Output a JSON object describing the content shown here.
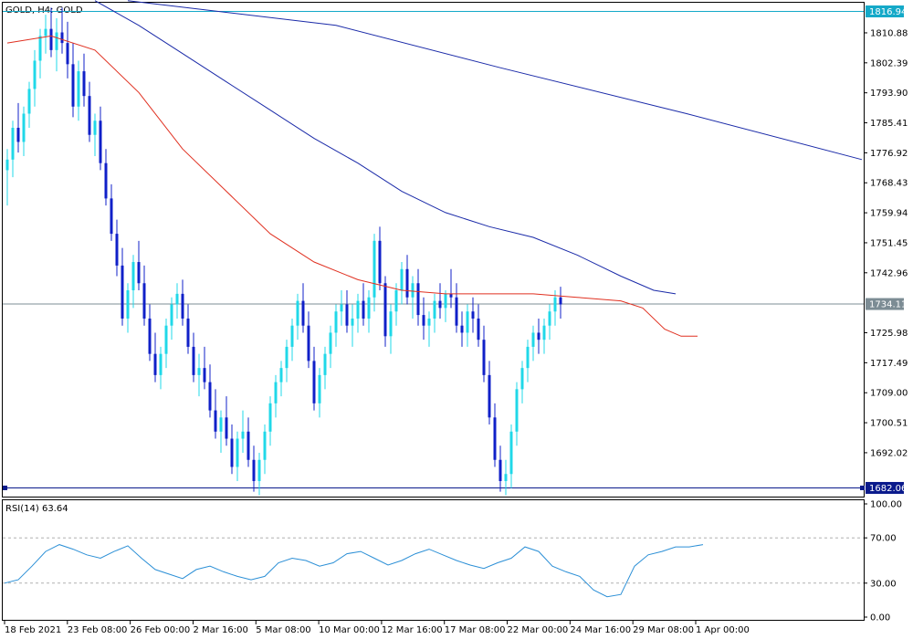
{
  "chart_data": [
    {
      "type": "candlestick",
      "title": "GOLD, H4:  GOLD",
      "y_ticks": [
        "1810.88",
        "1802.39",
        "1793.90",
        "1785.41",
        "1776.92",
        "1768.43",
        "1759.94",
        "1751.45",
        "1742.96",
        "1734.11",
        "1725.98",
        "1717.49",
        "1709.00",
        "1700.51",
        "1692.02",
        "1682.06"
      ],
      "x_ticks": [
        "18 Feb 2021",
        "23 Feb 08:00",
        "26 Feb 00:00",
        "2 Mar 16:00",
        "5 Mar 08:00",
        "10 Mar 00:00",
        "12 Mar 16:00",
        "17 Mar 08:00",
        "22 Mar 00:00",
        "24 Mar 16:00",
        "29 Mar 08:00",
        "1 Apr 00:00"
      ],
      "ylim": [
        1679.6,
        1819.4
      ],
      "levels": {
        "top_line": {
          "label": "1816.94",
          "value": 1816.94,
          "color": "#14a9c8"
        },
        "current_price": {
          "label": "1734.11",
          "value": 1734.11,
          "color": "#7c8c94"
        },
        "bottom_line": {
          "label": "1682.06",
          "value": 1682.06,
          "color": "#0a1a8c"
        }
      },
      "ma_fast_color": "#e03020",
      "ma_slow_color": "#1a2aa8",
      "bull_color": "#20d8e8",
      "bear_color": "#1020c8",
      "ohlc": [
        [
          1772,
          1778,
          1762,
          1775
        ],
        [
          1775,
          1786,
          1770,
          1784
        ],
        [
          1784,
          1791,
          1777,
          1780
        ],
        [
          1780,
          1790,
          1776,
          1788
        ],
        [
          1788,
          1797,
          1784,
          1795
        ],
        [
          1795,
          1806,
          1790,
          1803
        ],
        [
          1803,
          1812,
          1798,
          1810
        ],
        [
          1810,
          1816,
          1805,
          1812
        ],
        [
          1812,
          1818,
          1804,
          1806
        ],
        [
          1806,
          1815,
          1800,
          1811
        ],
        [
          1811,
          1818,
          1805,
          1808
        ],
        [
          1808,
          1814,
          1798,
          1802
        ],
        [
          1802,
          1808,
          1787,
          1790
        ],
        [
          1790,
          1803,
          1786,
          1800
        ],
        [
          1800,
          1805,
          1790,
          1793
        ],
        [
          1793,
          1797,
          1780,
          1782
        ],
        [
          1782,
          1788,
          1776,
          1786
        ],
        [
          1786,
          1790,
          1772,
          1774
        ],
        [
          1774,
          1778,
          1762,
          1764
        ],
        [
          1764,
          1768,
          1752,
          1754
        ],
        [
          1754,
          1758,
          1742,
          1745
        ],
        [
          1745,
          1750,
          1728,
          1730
        ],
        [
          1730,
          1740,
          1726,
          1738
        ],
        [
          1738,
          1748,
          1733,
          1746
        ],
        [
          1746,
          1752,
          1738,
          1740
        ],
        [
          1740,
          1745,
          1728,
          1730
        ],
        [
          1730,
          1734,
          1718,
          1720
        ],
        [
          1720,
          1726,
          1712,
          1714
        ],
        [
          1714,
          1722,
          1710,
          1720
        ],
        [
          1720,
          1730,
          1716,
          1728
        ],
        [
          1728,
          1736,
          1724,
          1734
        ],
        [
          1734,
          1740,
          1730,
          1737
        ],
        [
          1737,
          1741,
          1728,
          1730
        ],
        [
          1730,
          1734,
          1720,
          1722
        ],
        [
          1722,
          1726,
          1712,
          1714
        ],
        [
          1714,
          1720,
          1708,
          1716
        ],
        [
          1716,
          1722,
          1710,
          1712
        ],
        [
          1712,
          1717,
          1702,
          1704
        ],
        [
          1704,
          1710,
          1696,
          1698
        ],
        [
          1698,
          1704,
          1692,
          1702
        ],
        [
          1702,
          1708,
          1694,
          1696
        ],
        [
          1696,
          1700,
          1686,
          1688
        ],
        [
          1688,
          1698,
          1684,
          1696
        ],
        [
          1696,
          1704,
          1692,
          1698
        ],
        [
          1698,
          1702,
          1688,
          1690
        ],
        [
          1690,
          1694,
          1681,
          1684
        ],
        [
          1684,
          1692,
          1680,
          1690
        ],
        [
          1690,
          1700,
          1686,
          1698
        ],
        [
          1698,
          1708,
          1694,
          1706
        ],
        [
          1706,
          1714,
          1702,
          1712
        ],
        [
          1712,
          1718,
          1708,
          1716
        ],
        [
          1716,
          1724,
          1712,
          1722
        ],
        [
          1722,
          1730,
          1718,
          1728
        ],
        [
          1728,
          1737,
          1724,
          1735
        ],
        [
          1735,
          1740,
          1726,
          1728
        ],
        [
          1728,
          1732,
          1716,
          1718
        ],
        [
          1718,
          1722,
          1704,
          1706
        ],
        [
          1706,
          1716,
          1702,
          1714
        ],
        [
          1714,
          1722,
          1710,
          1720
        ],
        [
          1720,
          1728,
          1716,
          1726
        ],
        [
          1726,
          1734,
          1722,
          1732
        ],
        [
          1732,
          1738,
          1728,
          1734
        ],
        [
          1734,
          1738,
          1726,
          1728
        ],
        [
          1728,
          1734,
          1722,
          1730
        ],
        [
          1730,
          1737,
          1726,
          1735
        ],
        [
          1735,
          1740,
          1728,
          1730
        ],
        [
          1730,
          1738,
          1726,
          1736
        ],
        [
          1736,
          1754,
          1732,
          1752
        ],
        [
          1752,
          1756,
          1738,
          1740
        ],
        [
          1740,
          1742,
          1722,
          1725
        ],
        [
          1725,
          1734,
          1720,
          1732
        ],
        [
          1732,
          1740,
          1728,
          1738
        ],
        [
          1738,
          1746,
          1734,
          1744
        ],
        [
          1744,
          1748,
          1734,
          1736
        ],
        [
          1736,
          1742,
          1730,
          1740
        ],
        [
          1740,
          1744,
          1728,
          1731
        ],
        [
          1731,
          1736,
          1724,
          1728
        ],
        [
          1728,
          1732,
          1722,
          1730
        ],
        [
          1730,
          1737,
          1726,
          1735
        ],
        [
          1735,
          1740,
          1730,
          1733
        ],
        [
          1733,
          1738,
          1729,
          1737
        ],
        [
          1737,
          1744,
          1733,
          1736
        ],
        [
          1736,
          1740,
          1726,
          1728
        ],
        [
          1728,
          1732,
          1722,
          1726
        ],
        [
          1726,
          1734,
          1722,
          1732
        ],
        [
          1732,
          1736,
          1726,
          1730
        ],
        [
          1730,
          1734,
          1722,
          1724
        ],
        [
          1724,
          1728,
          1712,
          1714
        ],
        [
          1714,
          1718,
          1700,
          1702
        ],
        [
          1702,
          1706,
          1688,
          1690
        ],
        [
          1690,
          1694,
          1681,
          1684
        ],
        [
          1684,
          1690,
          1680,
          1686
        ],
        [
          1686,
          1700,
          1682,
          1698
        ],
        [
          1698,
          1712,
          1694,
          1710
        ],
        [
          1710,
          1718,
          1706,
          1716
        ],
        [
          1716,
          1724,
          1712,
          1722
        ],
        [
          1722,
          1728,
          1718,
          1726
        ],
        [
          1726,
          1730,
          1720,
          1724
        ],
        [
          1724,
          1730,
          1720,
          1728
        ],
        [
          1728,
          1734,
          1724,
          1732
        ],
        [
          1732,
          1738,
          1728,
          1736
        ],
        [
          1736,
          1739,
          1730,
          1734
        ]
      ],
      "ma_fast": [
        [
          0,
          1808
        ],
        [
          8,
          1810
        ],
        [
          16,
          1806
        ],
        [
          24,
          1794
        ],
        [
          32,
          1778
        ],
        [
          40,
          1766
        ],
        [
          48,
          1754
        ],
        [
          56,
          1746
        ],
        [
          64,
          1741
        ],
        [
          72,
          1738
        ],
        [
          80,
          1737
        ],
        [
          88,
          1737
        ],
        [
          96,
          1737
        ],
        [
          104,
          1736
        ],
        [
          112,
          1735
        ],
        [
          116,
          1733
        ],
        [
          120,
          1727
        ],
        [
          123,
          1725
        ],
        [
          126,
          1725
        ]
      ],
      "ma_slow": [
        [
          16,
          1820
        ],
        [
          24,
          1813
        ],
        [
          32,
          1805
        ],
        [
          40,
          1797
        ],
        [
          48,
          1789
        ],
        [
          56,
          1781
        ],
        [
          64,
          1774
        ],
        [
          72,
          1766
        ],
        [
          80,
          1760
        ],
        [
          88,
          1756
        ],
        [
          96,
          1753
        ],
        [
          104,
          1748
        ],
        [
          112,
          1742
        ],
        [
          118,
          1738
        ],
        [
          122,
          1737
        ]
      ],
      "ma_long": [
        [
          22,
          1820
        ],
        [
          60,
          1813
        ],
        [
          90,
          1801
        ],
        [
          124,
          1788
        ],
        [
          156,
          1775
        ]
      ]
    },
    {
      "type": "line",
      "title": "RSI(14) 63.64",
      "y_ticks": [
        "100.00",
        "70.00",
        "30.00",
        "0.00"
      ],
      "ylim": [
        0,
        100
      ],
      "levels": [
        70,
        30
      ],
      "line_color": "#2b8fd6",
      "values": [
        [
          0,
          30
        ],
        [
          5,
          33
        ],
        [
          10,
          45
        ],
        [
          15,
          58
        ],
        [
          20,
          64
        ],
        [
          25,
          60
        ],
        [
          30,
          55
        ],
        [
          35,
          52
        ],
        [
          40,
          58
        ],
        [
          45,
          63
        ],
        [
          50,
          52
        ],
        [
          55,
          42
        ],
        [
          60,
          38
        ],
        [
          65,
          34
        ],
        [
          70,
          42
        ],
        [
          75,
          45
        ],
        [
          80,
          40
        ],
        [
          85,
          36
        ],
        [
          90,
          33
        ],
        [
          95,
          36
        ],
        [
          100,
          48
        ],
        [
          105,
          52
        ],
        [
          110,
          50
        ],
        [
          115,
          45
        ],
        [
          120,
          48
        ],
        [
          125,
          56
        ],
        [
          130,
          58
        ],
        [
          135,
          52
        ],
        [
          140,
          46
        ],
        [
          145,
          50
        ],
        [
          150,
          56
        ],
        [
          155,
          60
        ],
        [
          160,
          55
        ],
        [
          165,
          50
        ],
        [
          170,
          46
        ],
        [
          175,
          43
        ],
        [
          180,
          48
        ],
        [
          185,
          52
        ],
        [
          190,
          62
        ],
        [
          195,
          58
        ],
        [
          200,
          45
        ],
        [
          205,
          40
        ],
        [
          210,
          36
        ],
        [
          215,
          24
        ],
        [
          220,
          18
        ],
        [
          225,
          20
        ],
        [
          230,
          45
        ],
        [
          235,
          55
        ],
        [
          240,
          58
        ],
        [
          245,
          62
        ],
        [
          250,
          62
        ],
        [
          255,
          64
        ]
      ]
    }
  ]
}
